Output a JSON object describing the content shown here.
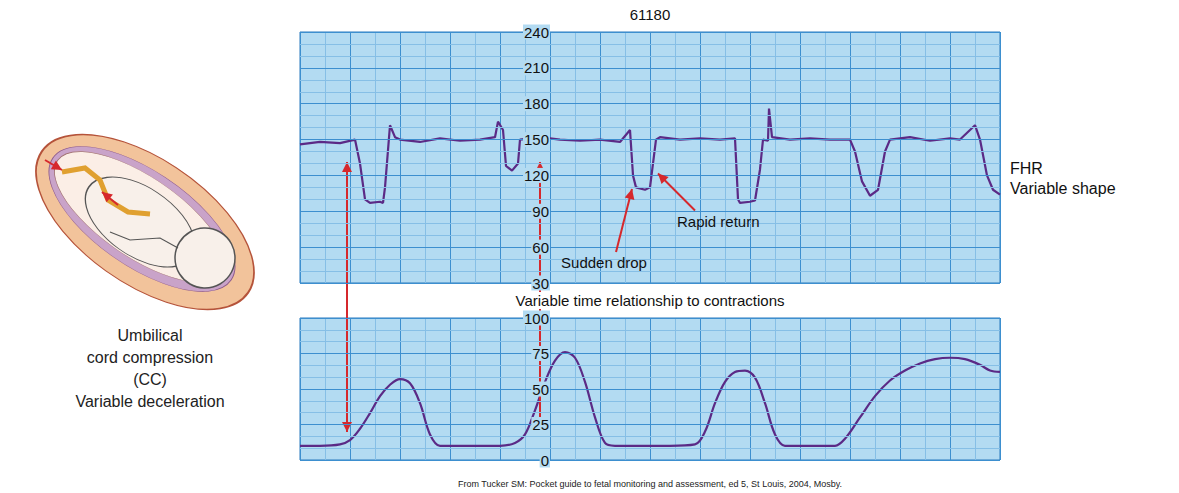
{
  "chart_data": [
    {
      "type": "line",
      "title": "61180",
      "x": [
        0,
        2,
        4,
        5.5,
        6,
        6.5,
        7,
        8,
        8.3,
        8.5,
        9,
        9.5,
        10,
        12,
        14,
        16,
        18,
        19.5,
        19.8,
        20.3,
        20.6,
        21.2,
        21.8,
        22,
        24,
        26,
        28,
        30,
        32,
        33,
        33.3,
        33.6,
        34.5,
        35,
        35.6,
        36,
        38,
        40,
        42,
        43.5,
        43.8,
        44,
        45,
        45.5,
        46,
        46.3,
        46.8,
        46.9,
        47.2,
        49,
        51,
        53,
        55,
        55.5,
        56.2,
        57,
        57.8,
        58.5,
        59,
        61,
        63,
        65,
        66,
        67.5,
        68,
        68.7,
        69.3,
        70
      ],
      "series": [
        {
          "color": "#5b2a86",
          "values": [
            146,
            148,
            147,
            150,
            130,
            100,
            97,
            98,
            97,
            110,
            162,
            152,
            150,
            148,
            151,
            149,
            150,
            152,
            165,
            158,
            128,
            124,
            130,
            150,
            152,
            150,
            149,
            150,
            148,
            158,
            120,
            110,
            108,
            110,
            150,
            152,
            150,
            151,
            150,
            151,
            100,
            97,
            98,
            99,
            125,
            150,
            149,
            176,
            152,
            150,
            151,
            150,
            150,
            140,
            115,
            103,
            108,
            140,
            150,
            152,
            149,
            151,
            150,
            162,
            150,
            120,
            108,
            104
          ]
        }
      ],
      "xlim": [
        0,
        70
      ],
      "xticks": [
        0,
        5,
        10,
        15,
        20,
        25,
        30,
        35,
        40,
        45,
        50,
        55,
        60,
        65,
        70
      ],
      "ylim": [
        30,
        240
      ],
      "yticks": [
        30,
        60,
        90,
        120,
        150,
        180,
        210,
        240
      ],
      "grid": true,
      "tick_labels": "y",
      "series_label": [
        "FHR",
        "Variable shape"
      ],
      "annotations": [
        {
          "text": "Sudden drop",
          "x": 33.4,
          "y": 112
        },
        {
          "text": "Rapid return",
          "x": 35.5,
          "y": 125
        }
      ]
    },
    {
      "type": "line",
      "title": "Variable time relationship to contractions",
      "x": [
        0,
        2,
        4,
        5,
        6,
        7,
        8,
        9,
        10,
        11,
        12,
        13,
        14,
        16,
        18,
        20,
        21.5,
        22.5,
        23.5,
        24.5,
        25.5,
        26.5,
        27.5,
        28.5,
        29.5,
        30.5,
        31.5,
        34,
        37,
        39.5,
        40.5,
        41.5,
        42.5,
        43.5,
        44.5,
        45.5,
        46.5,
        47.5,
        48.5,
        51,
        53.5,
        54.5,
        56,
        57.5,
        59,
        60.5,
        62,
        63.5,
        65,
        66.5,
        68,
        69,
        70
      ],
      "series": [
        {
          "color": "#5b2a86",
          "values": [
            10,
            10,
            11,
            14,
            22,
            33,
            45,
            53,
            57,
            54,
            40,
            18,
            10,
            10,
            10,
            10,
            12,
            18,
            35,
            55,
            70,
            76,
            72,
            55,
            30,
            12,
            10,
            10,
            10,
            11,
            20,
            40,
            55,
            62,
            63,
            58,
            40,
            18,
            10,
            10,
            10,
            15,
            30,
            45,
            56,
            63,
            68,
            71,
            72,
            71,
            67,
            63,
            62
          ]
        }
      ],
      "xlim": [
        0,
        70
      ],
      "xticks": [
        0,
        5,
        10,
        15,
        20,
        25,
        30,
        35,
        40,
        45,
        50,
        55,
        60,
        65,
        70
      ],
      "ylim": [
        0,
        100
      ],
      "yticks": [
        0,
        25,
        50,
        75,
        100
      ],
      "grid": true,
      "tick_labels": "y"
    }
  ],
  "illustration_caption": [
    "Umbilical",
    "cord compression",
    "(CC)",
    "Variable deceleration"
  ],
  "source": "From Tucker SM: Pocket guide to fetal monitoring and assessment, ed 5, St Louis, 2004, Mosby."
}
